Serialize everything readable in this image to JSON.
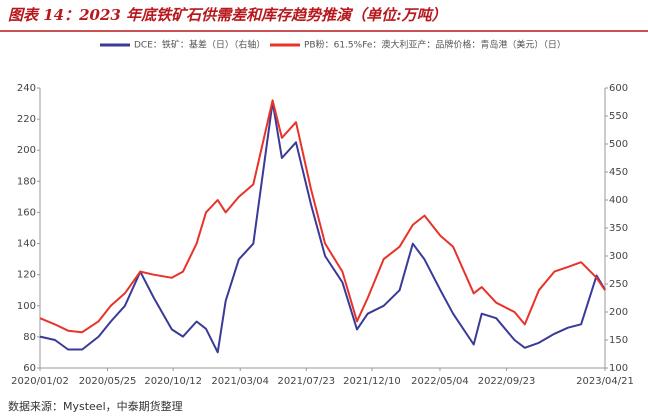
{
  "chart_data": {
    "type": "line",
    "title": "图表 14：2023 年底铁矿石供需差和库存趋势推演（单位:万吨）",
    "source": "数据来源：Mysteel，中泰期货整理",
    "x": [
      "2020/01/02",
      "2020/02/03",
      "2020/03/02",
      "2020/04/01",
      "2020/05/06",
      "2020/06/01",
      "2020/07/01",
      "2020/08/03",
      "2020/09/01",
      "2020/10/09",
      "2020/11/02",
      "2020/12/01",
      "2020/12/21",
      "2021/01/15",
      "2021/02/01",
      "2021/03/01",
      "2021/04/01",
      "2021/05/12",
      "2021/06/01",
      "2021/07/01",
      "2021/08/02",
      "2021/09/01",
      "2021/10/08",
      "2021/11/08",
      "2021/12/01",
      "2022/01/04",
      "2022/02/07",
      "2022/03/07",
      "2022/04/01",
      "2022/05/05",
      "2022/06/01",
      "2022/07/15",
      "2022/08/01",
      "2022/09/01",
      "2022/10/10",
      "2022/11/01",
      "2022/12/01",
      "2023/01/03",
      "2023/02/01",
      "2023/03/01",
      "2023/04/03",
      "2023/04/21"
    ],
    "xlim": [
      "2020/01/02",
      "2023/04/21"
    ],
    "xticks": [
      "2020/01/02",
      "2020/05/25",
      "2020/10/12",
      "2021/03/04",
      "2021/07/23",
      "2021/12/10",
      "2022/05/04",
      "2022/09/23",
      "2023/04/21"
    ],
    "series": [
      {
        "name": "DCE：铁矿：基差（日）（右轴）",
        "color": "#3a3a98",
        "axis": "y2",
        "values": [
          156,
          150,
          133,
          133,
          156,
          183,
          211,
          272,
          225,
          169,
          156,
          183,
          170,
          128,
          220,
          294,
          322,
          575,
          475,
          503,
          392,
          300,
          253,
          169,
          197,
          211,
          239,
          322,
          294,
          239,
          197,
          142,
          197,
          189,
          150,
          136,
          145,
          161,
          172,
          178,
          265,
          240
        ]
      },
      {
        "name": "PB粉：61.5%Fe：澳大利亚产：品牌价格：青岛港（美元）（日）",
        "color": "#e8332a",
        "values": [
          92,
          88,
          84,
          83,
          90,
          100,
          108,
          122,
          120,
          118,
          122,
          140,
          160,
          168,
          160,
          170,
          178,
          232,
          208,
          218,
          175,
          140,
          122,
          90,
          105,
          130,
          138,
          152,
          158,
          145,
          138,
          108,
          112,
          102,
          96,
          88,
          110,
          122,
          125,
          128,
          118,
          110
        ]
      }
    ],
    "ylim": [
      60,
      240
    ],
    "yticks": [
      60,
      80,
      100,
      120,
      140,
      160,
      180,
      200,
      220,
      240
    ],
    "y2lim": [
      100,
      600
    ],
    "y2ticks": [
      100,
      150,
      200,
      250,
      300,
      350,
      400,
      450,
      500,
      550,
      600
    ]
  }
}
